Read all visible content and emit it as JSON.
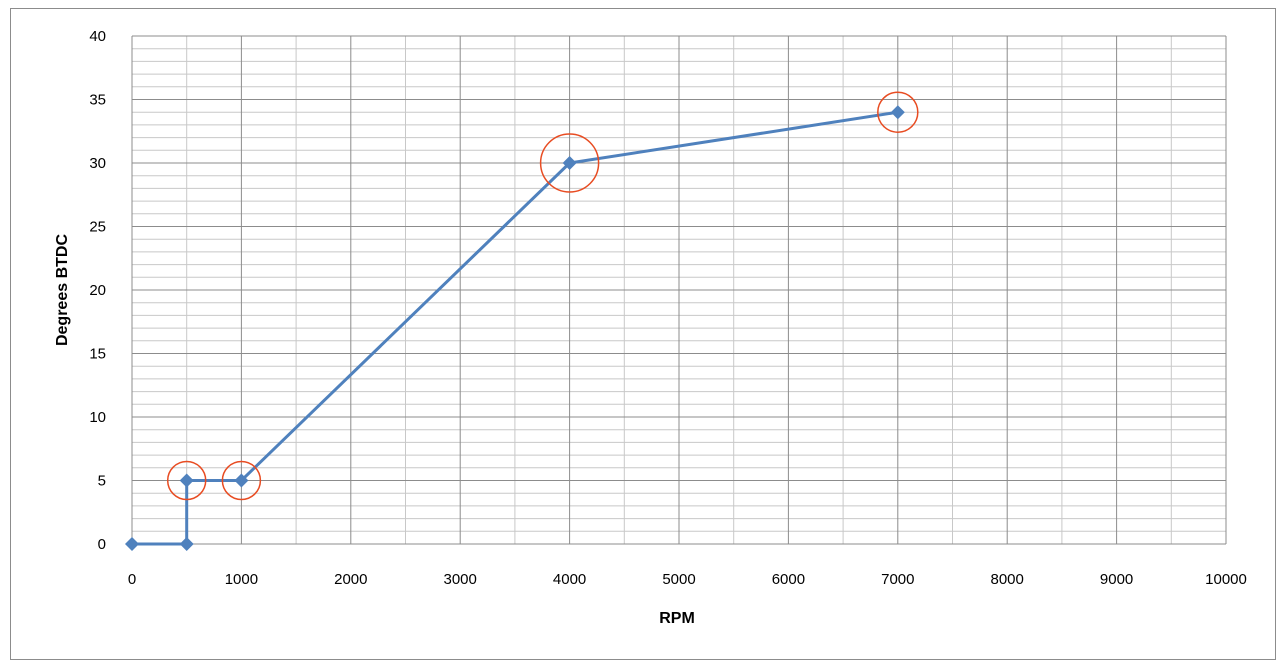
{
  "chart_data": {
    "type": "scatter",
    "title": "",
    "xlabel": "RPM",
    "ylabel": "Degrees BTDC",
    "xlim": [
      0,
      10000
    ],
    "ylim": [
      0,
      40
    ],
    "xticks": [
      0,
      1000,
      2000,
      3000,
      4000,
      5000,
      6000,
      7000,
      8000,
      9000,
      10000
    ],
    "yticks": [
      0,
      5,
      10,
      15,
      20,
      25,
      30,
      35,
      40
    ],
    "x_tick_labels": [
      "0",
      "1000",
      "2000",
      "3000",
      "4000",
      "5000",
      "6000",
      "7000",
      "8000",
      "9000",
      "10000"
    ],
    "y_tick_labels": [
      "0",
      "5",
      "10",
      "15",
      "20",
      "25",
      "30",
      "35",
      "40"
    ],
    "grid": true,
    "minor_grid": true,
    "legend": "none",
    "series": [
      {
        "color": "#4f81bd",
        "marker": "diamond",
        "lines": true,
        "points": [
          {
            "x": 0,
            "y": 0
          },
          {
            "x": 500,
            "y": 0
          },
          {
            "x": 500,
            "y": 5
          },
          {
            "x": 1000,
            "y": 5
          },
          {
            "x": 4000,
            "y": 30
          },
          {
            "x": 7000,
            "y": 34
          }
        ]
      }
    ],
    "annotations": [
      {
        "type": "circle",
        "color": "#e84c22",
        "x": 500,
        "y": 5
      },
      {
        "type": "circle",
        "color": "#e84c22",
        "x": 1000,
        "y": 5
      },
      {
        "type": "circle",
        "color": "#e84c22",
        "x": 4000,
        "y": 30
      },
      {
        "type": "circle",
        "color": "#e84c22",
        "x": 7000,
        "y": 34
      }
    ]
  }
}
